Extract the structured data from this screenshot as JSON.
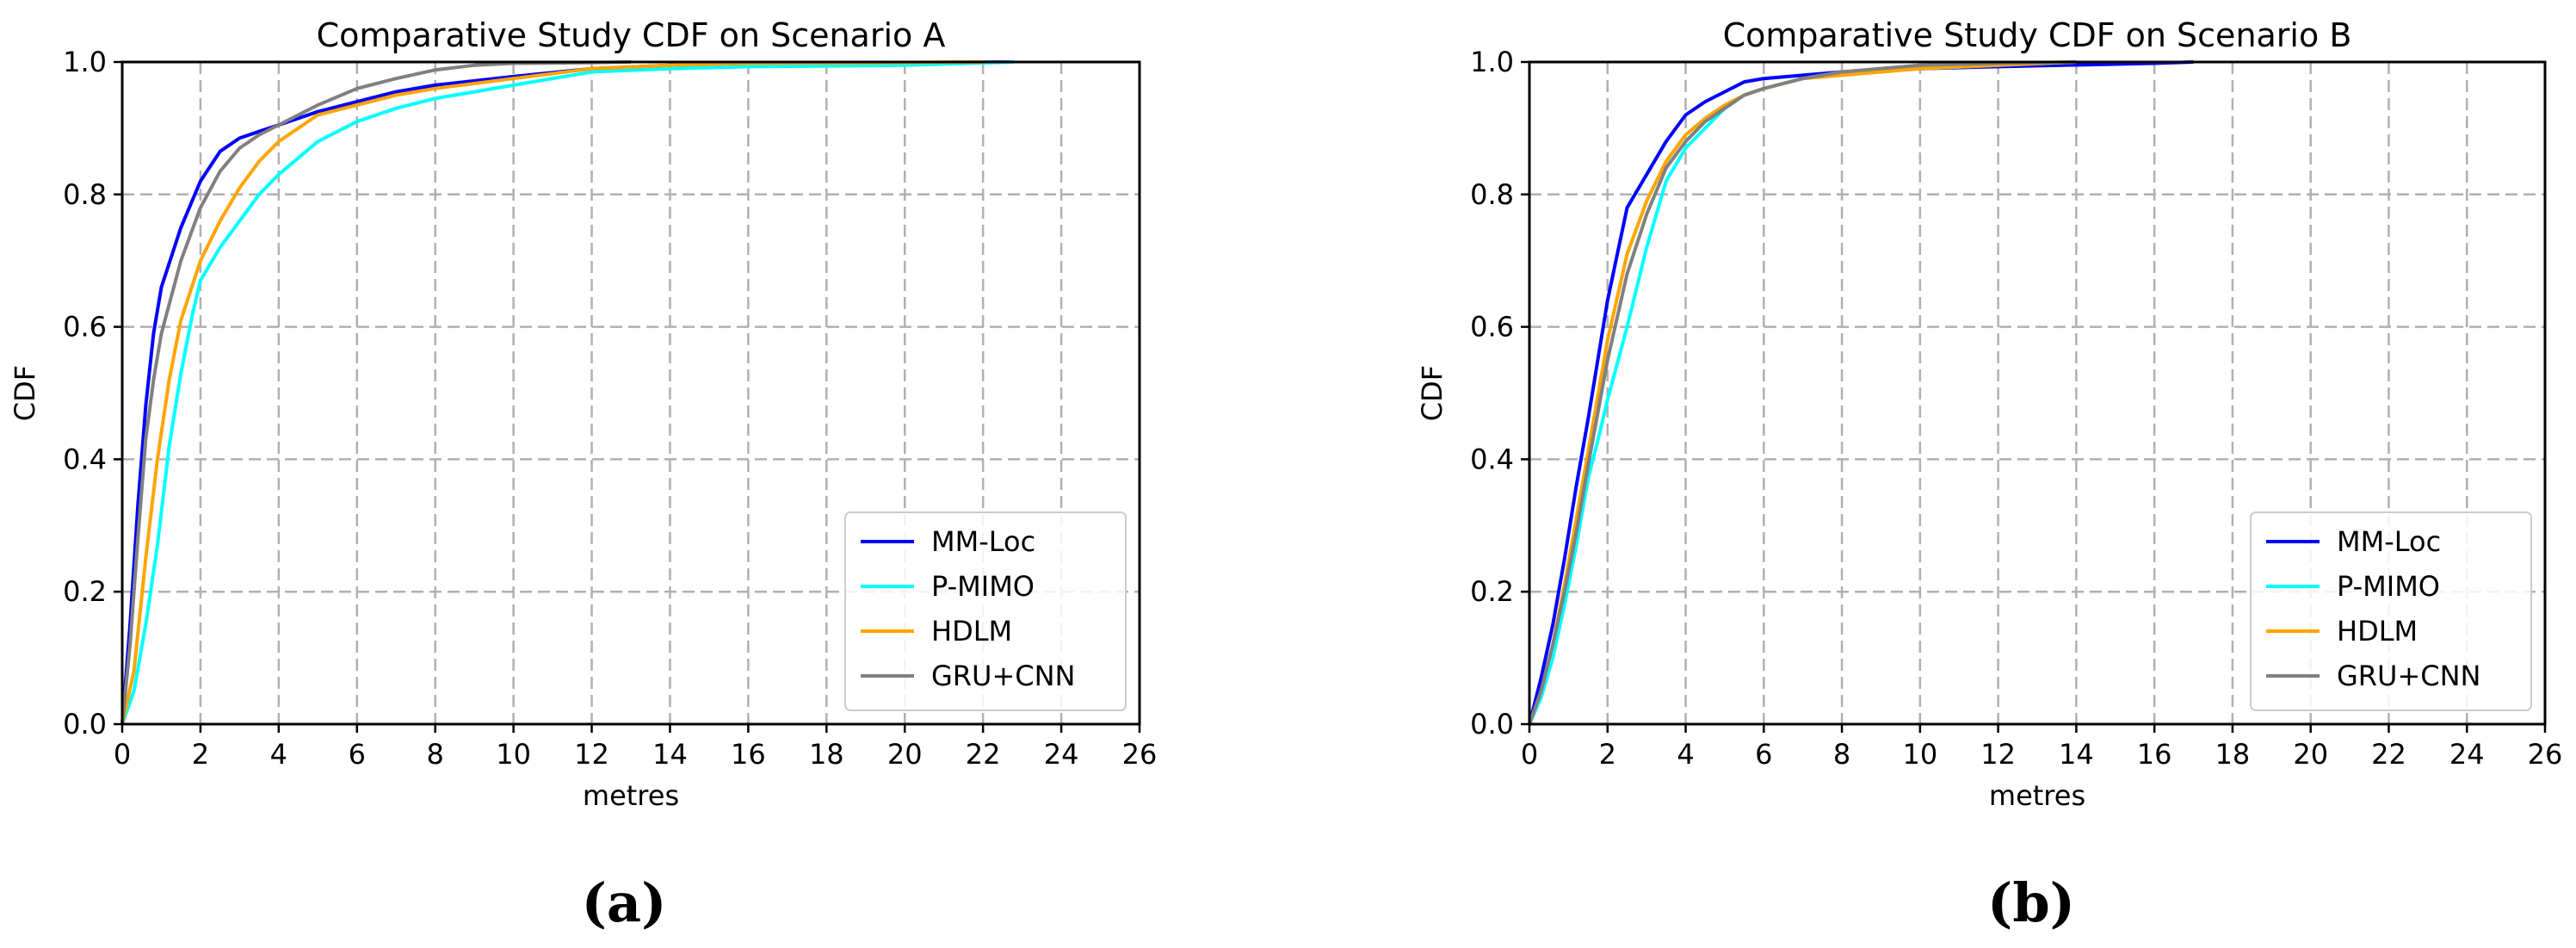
{
  "chart_data": [
    {
      "type": "line",
      "title": "Comparative Study CDF on Scenario A",
      "xlabel": "metres",
      "ylabel": "CDF",
      "xlim": [
        0,
        26
      ],
      "ylim": [
        0,
        1
      ],
      "xticks": [
        0,
        2,
        4,
        6,
        8,
        10,
        12,
        14,
        16,
        18,
        20,
        22,
        24,
        26
      ],
      "yticks": [
        0.0,
        0.2,
        0.4,
        0.6,
        0.8,
        1.0
      ],
      "xtick_labels": [
        "0",
        "2",
        "4",
        "6",
        "8",
        "10",
        "12",
        "14",
        "16",
        "18",
        "20",
        "22",
        "24",
        "26"
      ],
      "ytick_labels": [
        "0.0",
        "0.2",
        "0.4",
        "0.6",
        "0.8",
        "1.0"
      ],
      "grid": true,
      "legend_position": "lower-right",
      "panel_label": "(a)",
      "series": [
        {
          "name": "MM-Loc",
          "color": "#0000ff",
          "x": [
            0,
            0.2,
            0.4,
            0.6,
            0.8,
            1.0,
            1.5,
            2.0,
            2.5,
            3.0,
            3.5,
            4.0,
            5.0,
            6.0,
            7.0,
            8.0,
            10.0,
            12.0,
            14.0,
            16.0,
            20.0,
            22.8
          ],
          "y": [
            0,
            0.15,
            0.33,
            0.48,
            0.59,
            0.66,
            0.75,
            0.82,
            0.865,
            0.885,
            0.895,
            0.905,
            0.925,
            0.94,
            0.955,
            0.965,
            0.978,
            0.99,
            0.995,
            0.998,
            0.999,
            1.0
          ]
        },
        {
          "name": "P-MIMO",
          "color": "#00ffff",
          "x": [
            0,
            0.3,
            0.6,
            0.9,
            1.2,
            1.5,
            1.8,
            2.0,
            2.5,
            3.0,
            3.5,
            4.0,
            5.0,
            6.0,
            7.0,
            8.0,
            9.0,
            10.0,
            11.0,
            12.0,
            14.0,
            16.0,
            20.0,
            22.8
          ],
          "y": [
            0,
            0.05,
            0.15,
            0.27,
            0.42,
            0.53,
            0.62,
            0.67,
            0.72,
            0.76,
            0.8,
            0.83,
            0.88,
            0.91,
            0.93,
            0.945,
            0.955,
            0.965,
            0.975,
            0.985,
            0.99,
            0.993,
            0.995,
            1.0
          ]
        },
        {
          "name": "HDLM",
          "color": "#ffa500",
          "x": [
            0,
            0.3,
            0.6,
            0.9,
            1.2,
            1.5,
            2.0,
            2.5,
            3.0,
            3.5,
            4.0,
            5.0,
            6.0,
            7.0,
            8.0,
            10.0,
            12.0,
            14.0,
            16.0,
            22.0
          ],
          "y": [
            0,
            0.08,
            0.25,
            0.4,
            0.52,
            0.61,
            0.7,
            0.76,
            0.81,
            0.85,
            0.88,
            0.92,
            0.935,
            0.95,
            0.96,
            0.975,
            0.99,
            0.995,
            0.998,
            1.0
          ]
        },
        {
          "name": "GRU+CNN",
          "color": "#808080",
          "x": [
            0,
            0.2,
            0.4,
            0.6,
            0.8,
            1.0,
            1.5,
            2.0,
            2.5,
            3.0,
            3.5,
            4.0,
            5.0,
            6.0,
            7.0,
            8.0,
            9.0,
            10.0,
            12.0,
            13.0
          ],
          "y": [
            0,
            0.12,
            0.28,
            0.43,
            0.52,
            0.59,
            0.7,
            0.78,
            0.835,
            0.87,
            0.89,
            0.905,
            0.935,
            0.96,
            0.975,
            0.988,
            0.995,
            0.998,
            0.999,
            1.0
          ]
        }
      ]
    },
    {
      "type": "line",
      "title": "Comparative Study CDF on Scenario B",
      "xlabel": "metres",
      "ylabel": "CDF",
      "xlim": [
        0,
        26
      ],
      "ylim": [
        0,
        1
      ],
      "xticks": [
        0,
        2,
        4,
        6,
        8,
        10,
        12,
        14,
        16,
        18,
        20,
        22,
        24,
        26
      ],
      "yticks": [
        0.0,
        0.2,
        0.4,
        0.6,
        0.8,
        1.0
      ],
      "xtick_labels": [
        "0",
        "2",
        "4",
        "6",
        "8",
        "10",
        "12",
        "14",
        "16",
        "18",
        "20",
        "22",
        "24",
        "26"
      ],
      "ytick_labels": [
        "0.0",
        "0.2",
        "0.4",
        "0.6",
        "0.8",
        "1.0"
      ],
      "grid": true,
      "legend_position": "lower-right",
      "panel_label": "(b)",
      "series": [
        {
          "name": "MM-Loc",
          "color": "#0000ff",
          "x": [
            0,
            0.3,
            0.6,
            0.9,
            1.2,
            1.5,
            2.0,
            2.5,
            3.0,
            3.5,
            4.0,
            4.5,
            5.0,
            5.5,
            6.0,
            7.0,
            8.0,
            10.0,
            12.0,
            16.0,
            17.0
          ],
          "y": [
            0,
            0.07,
            0.15,
            0.25,
            0.36,
            0.46,
            0.64,
            0.78,
            0.83,
            0.88,
            0.92,
            0.94,
            0.955,
            0.97,
            0.975,
            0.98,
            0.985,
            0.99,
            0.993,
            0.998,
            1.0
          ]
        },
        {
          "name": "P-MIMO",
          "color": "#00ffff",
          "x": [
            0,
            0.3,
            0.6,
            0.9,
            1.2,
            1.5,
            1.8,
            2.0,
            2.5,
            3.0,
            3.5,
            4.0,
            4.5,
            5.0,
            5.5,
            6.0,
            7.0,
            8.0,
            10.0,
            12.0,
            14.0
          ],
          "y": [
            0,
            0.04,
            0.1,
            0.18,
            0.27,
            0.37,
            0.44,
            0.49,
            0.6,
            0.72,
            0.82,
            0.87,
            0.9,
            0.93,
            0.95,
            0.96,
            0.975,
            0.985,
            0.99,
            0.995,
            1.0
          ]
        },
        {
          "name": "HDLM",
          "color": "#ffa500",
          "x": [
            0,
            0.3,
            0.6,
            0.9,
            1.2,
            1.5,
            2.0,
            2.5,
            3.0,
            3.5,
            4.0,
            4.5,
            5.0,
            5.5,
            6.0,
            7.0,
            8.0,
            10.0,
            12.0,
            14.0
          ],
          "y": [
            0,
            0.05,
            0.12,
            0.21,
            0.31,
            0.41,
            0.58,
            0.71,
            0.79,
            0.85,
            0.89,
            0.915,
            0.935,
            0.95,
            0.96,
            0.975,
            0.98,
            0.99,
            0.995,
            1.0
          ]
        },
        {
          "name": "GRU+CNN",
          "color": "#808080",
          "x": [
            0,
            0.3,
            0.6,
            0.9,
            1.2,
            1.5,
            2.0,
            2.5,
            3.0,
            3.5,
            4.0,
            4.5,
            5.0,
            5.5,
            6.0,
            7.0,
            8.0,
            10.0,
            12.0,
            14.0
          ],
          "y": [
            0,
            0.05,
            0.12,
            0.2,
            0.29,
            0.39,
            0.55,
            0.68,
            0.77,
            0.84,
            0.88,
            0.91,
            0.93,
            0.95,
            0.96,
            0.975,
            0.985,
            0.995,
            0.998,
            1.0
          ]
        }
      ]
    }
  ]
}
